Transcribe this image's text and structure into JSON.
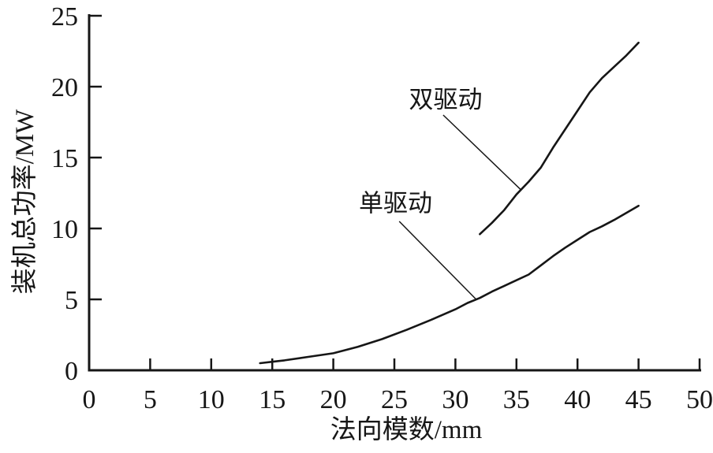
{
  "figure": {
    "background": "#ffffff",
    "line_color": "#161616"
  },
  "chart_data": {
    "type": "line",
    "title": "",
    "xlabel": "法向模数/mm",
    "ylabel": "装机总功率/MW",
    "xlim": [
      0,
      50
    ],
    "ylim": [
      0,
      25
    ],
    "x_ticks": [
      0,
      5,
      10,
      15,
      20,
      25,
      30,
      35,
      40,
      45,
      50
    ],
    "y_ticks": [
      0,
      5,
      10,
      15,
      20,
      25
    ],
    "grid": false,
    "legend_position": "none",
    "series": [
      {
        "id": "single-drive",
        "name": "单驱动",
        "x": [
          14,
          15,
          16,
          18,
          20,
          22,
          24,
          26,
          28,
          30,
          31,
          32,
          33,
          34,
          35,
          36,
          37,
          38,
          39,
          40,
          41,
          42,
          43,
          44,
          45
        ],
        "y": [
          0.5,
          0.6,
          0.7,
          0.95,
          1.2,
          1.65,
          2.2,
          2.85,
          3.55,
          4.3,
          4.75,
          5.1,
          5.55,
          5.95,
          6.35,
          6.75,
          7.4,
          8.05,
          8.65,
          9.2,
          9.75,
          10.15,
          10.6,
          11.1,
          11.6
        ]
      },
      {
        "id": "dual-drive",
        "name": "双驱动",
        "x": [
          32,
          33,
          34,
          35,
          36,
          37,
          38,
          39,
          40,
          41,
          42,
          43,
          44,
          45
        ],
        "y": [
          9.6,
          10.4,
          11.3,
          12.4,
          13.3,
          14.3,
          15.7,
          17.0,
          18.3,
          19.6,
          20.6,
          21.4,
          22.2,
          23.1
        ]
      }
    ],
    "annotations": [
      {
        "id": "dual-drive-label",
        "text": "双驱动",
        "x": 29.2,
        "y": 19.1,
        "leader": {
          "x1": 29.0,
          "y1": 18.0,
          "x2": 35.4,
          "y2": 12.7
        }
      },
      {
        "id": "single-drive-label",
        "text": "单驱动",
        "x": 25.1,
        "y": 11.8,
        "leader": {
          "x1": 25.4,
          "y1": 10.5,
          "x2": 31.7,
          "y2": 5.0
        }
      }
    ]
  }
}
